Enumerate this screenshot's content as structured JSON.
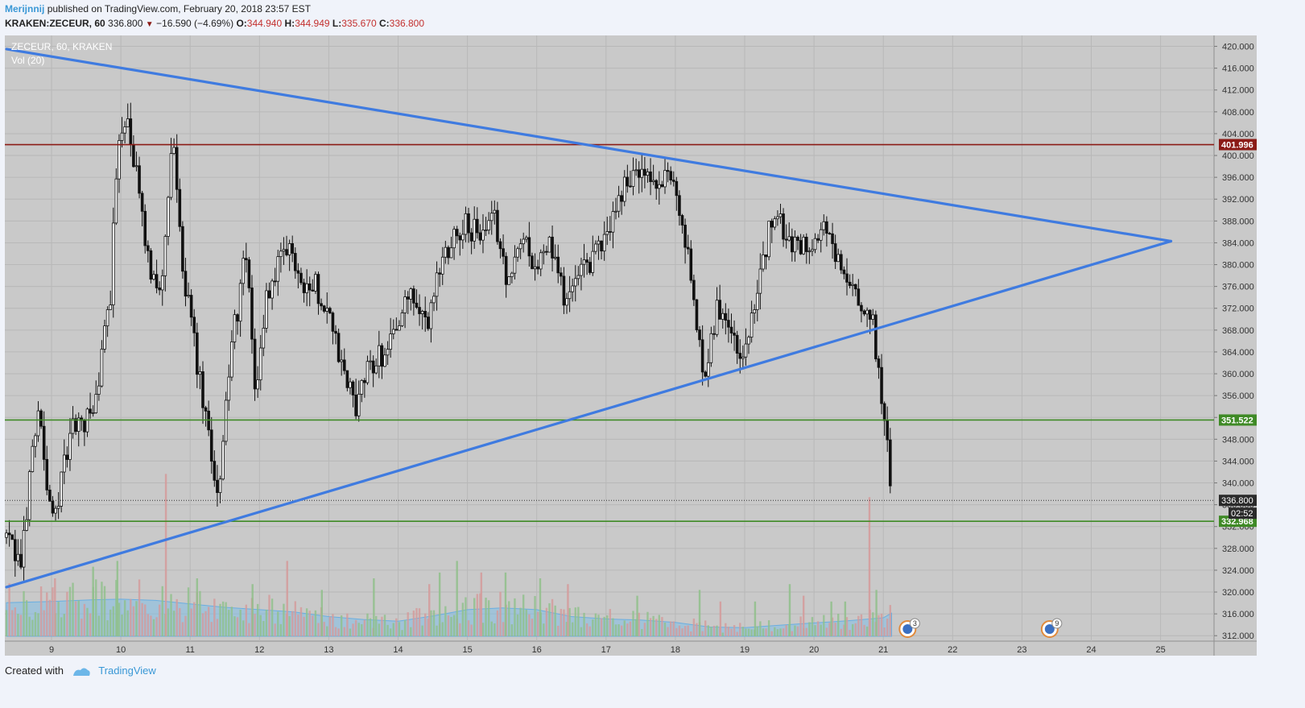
{
  "header": {
    "author": "Merijnnij",
    "published": "published on TradingView.com, February 20, 2018 23:57 EST",
    "symbol": "KRAKEN:ZECEUR, 60",
    "last": "336.800",
    "change": "−16.590 (−4.69%)",
    "o_label": "O:",
    "o_val": "344.940",
    "h_label": "H:",
    "h_val": "344.949",
    "l_label": "L:",
    "l_val": "335.670",
    "c_label": "C:",
    "c_val": "336.800"
  },
  "legend": {
    "title": "ZECEUR, 60, KRAKEN",
    "volume": "Vol (20)"
  },
  "footer": {
    "created": "Created with",
    "brand": "TradingView"
  },
  "colors": {
    "background": "#c9c9c9",
    "grid": "#b8b8b8",
    "trendline": "#3f7be0",
    "resistance": "#8b1b16",
    "support": "#3f8a26",
    "volume_area": "#7fbde6",
    "candle": "#111111"
  },
  "chart_data": {
    "type": "candlestick",
    "symbol": "ZECEUR",
    "interval": "60",
    "exchange": "KRAKEN",
    "x_tick_labels": [
      "9",
      "10",
      "11",
      "12",
      "13",
      "14",
      "15",
      "16",
      "17",
      "18",
      "19",
      "20",
      "21",
      "22",
      "23",
      "24",
      "25"
    ],
    "y_tick_labels": [
      "312.000",
      "316.000",
      "320.000",
      "324.000",
      "328.000",
      "332.000",
      "336.000",
      "340.000",
      "344.000",
      "348.000",
      "352.000",
      "356.000",
      "360.000",
      "364.000",
      "368.000",
      "372.000",
      "376.000",
      "380.000",
      "384.000",
      "388.000",
      "392.000",
      "396.000",
      "400.000",
      "404.000",
      "408.000",
      "412.000",
      "416.000",
      "420.000"
    ],
    "ylim": [
      311,
      422
    ],
    "xlim": [
      8.35,
      25.85
    ],
    "price_path_day": [
      8.35,
      8.55,
      8.8,
      9.0,
      9.3,
      9.6,
      9.85,
      9.95,
      10.05,
      10.2,
      10.4,
      10.6,
      10.75,
      10.85,
      11.0,
      11.2,
      11.4,
      11.6,
      11.8,
      11.95,
      12.1,
      12.3,
      12.45,
      12.6,
      12.8,
      13.0,
      13.2,
      13.4,
      13.6,
      13.8,
      14.0,
      14.2,
      14.4,
      14.6,
      14.8,
      15.0,
      15.2,
      15.4,
      15.6,
      15.8,
      16.0,
      16.2,
      16.4,
      16.6,
      16.8,
      17.0,
      17.2,
      17.4,
      17.6,
      17.8,
      17.95,
      18.1,
      18.3,
      18.4,
      18.6,
      18.8,
      18.95,
      19.1,
      19.25,
      19.4,
      19.6,
      19.8,
      20.0,
      20.2,
      20.4,
      20.6,
      20.75,
      20.85,
      20.95,
      21.05,
      21.12
    ],
    "price_path_value": [
      330,
      324,
      355,
      332,
      350,
      352,
      375,
      400,
      408,
      398,
      380,
      376,
      404,
      385,
      370,
      353,
      338,
      365,
      382,
      356,
      374,
      380,
      383,
      377,
      376,
      372,
      360,
      354,
      362,
      364,
      370,
      374,
      368,
      380,
      386,
      387,
      385,
      388,
      376,
      386,
      379,
      384,
      374,
      377,
      381,
      385,
      393,
      397,
      395,
      394,
      397,
      388,
      370,
      360,
      372,
      370,
      361,
      372,
      378,
      390,
      385,
      384,
      385,
      386,
      378,
      374,
      369,
      370,
      357,
      350,
      336.8
    ],
    "volume_scale": [
      0,
      25
    ],
    "volume_area_day": [
      8.35,
      9.0,
      9.6,
      10.0,
      10.5,
      11.0,
      11.5,
      12.0,
      12.5,
      13.0,
      13.5,
      14.0,
      14.5,
      15.0,
      15.5,
      16.0,
      16.5,
      17.0,
      17.5,
      18.0,
      18.5,
      19.0,
      19.5,
      20.0,
      20.5,
      21.0,
      21.12
    ],
    "volume_area_value": [
      5.8,
      6.0,
      6.3,
      6.4,
      6.2,
      5.6,
      5.0,
      4.6,
      4.2,
      3.4,
      2.9,
      2.6,
      3.5,
      4.6,
      4.9,
      4.6,
      3.4,
      3.0,
      2.8,
      2.4,
      1.6,
      1.5,
      1.9,
      2.3,
      2.7,
      3.2,
      4.0
    ],
    "volume_spikes_day": [
      9.05,
      9.6,
      9.95,
      10.65,
      11.1,
      11.9,
      12.4,
      12.9,
      13.65,
      14.45,
      14.6,
      14.85,
      15.2,
      15.55,
      16.05,
      16.45,
      17.45,
      18.35,
      18.65,
      19.15,
      19.65,
      19.85,
      20.25,
      20.45,
      20.8,
      20.9
    ],
    "volume_spikes_value": [
      10,
      12,
      13,
      28,
      10,
      9,
      13,
      8,
      10,
      9,
      11,
      13,
      11,
      11,
      10,
      9,
      7,
      8,
      6,
      6,
      9,
      7,
      6,
      6,
      24,
      8
    ],
    "horizontal_levels": [
      {
        "price": 401.996,
        "label": "401.996",
        "color": "#8b1b16"
      },
      {
        "price": 351.522,
        "label": "351.522",
        "color": "#3f8a26"
      },
      {
        "price": 332.968,
        "label": "332.968",
        "color": "#3f8a26"
      }
    ],
    "last_price": {
      "price": 336.8,
      "label": "336.800",
      "countdown": "02:52"
    },
    "trendlines": [
      {
        "name": "upper",
        "from": [
          8.35,
          419.5
        ],
        "to": [
          25.15,
          384.3
        ]
      },
      {
        "name": "lower",
        "from": [
          8.35,
          320.9
        ],
        "to": [
          25.15,
          384.3
        ]
      }
    ],
    "events": [
      {
        "day": 21.35,
        "count": "3"
      },
      {
        "day": 23.4,
        "count": "9"
      }
    ],
    "grid": true,
    "legend": "top-left"
  }
}
